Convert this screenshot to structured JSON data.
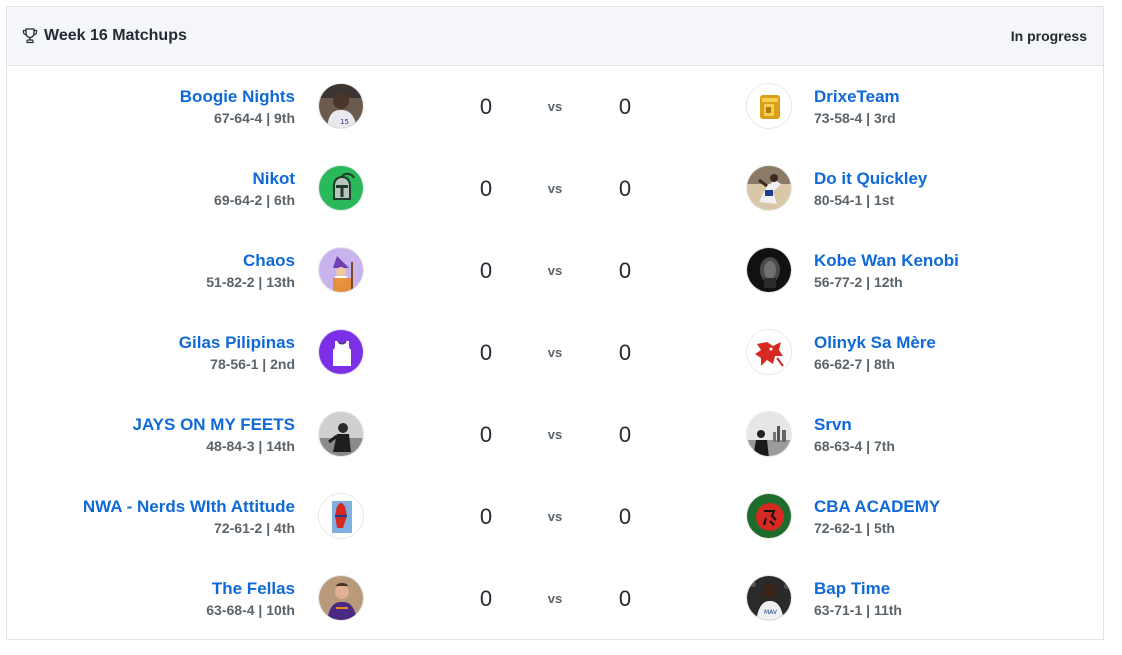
{
  "header": {
    "title": "Week 16 Matchups",
    "status": "In progress",
    "icon": "trophy-icon"
  },
  "vs_label": "vs",
  "matchups": [
    {
      "left": {
        "name": "Boogie Nights",
        "record": "67-64-4 | 9th",
        "score": "0",
        "avatar": "player-photo"
      },
      "right": {
        "name": "DrixeTeam",
        "record": "73-58-4 | 3rd",
        "score": "0",
        "avatar": "gold-logo"
      }
    },
    {
      "left": {
        "name": "Nikot",
        "record": "69-64-2 | 6th",
        "score": "0",
        "avatar": "green-knight-helmet"
      },
      "right": {
        "name": "Do it Quickley",
        "record": "80-54-1 | 1st",
        "score": "0",
        "avatar": "player-dunk-photo"
      }
    },
    {
      "left": {
        "name": "Chaos",
        "record": "51-82-2 | 13th",
        "score": "0",
        "avatar": "purple-wizard"
      },
      "right": {
        "name": "Kobe Wan Kenobi",
        "record": "56-77-2 | 12th",
        "score": "0",
        "avatar": "dark-portrait-photo"
      }
    },
    {
      "left": {
        "name": "Gilas Pilipinas",
        "record": "78-56-1 | 2nd",
        "score": "0",
        "avatar": "purple-jersey"
      },
      "right": {
        "name": "Olinyk Sa Mère",
        "record": "66-62-7 | 8th",
        "score": "0",
        "avatar": "red-dragon"
      }
    },
    {
      "left": {
        "name": "JAYS ON MY FEETS",
        "record": "48-84-3 | 14th",
        "score": "0",
        "avatar": "bw-player-photo"
      },
      "right": {
        "name": "Srvn",
        "record": "68-63-4 | 7th",
        "score": "0",
        "avatar": "bw-city-photo"
      }
    },
    {
      "left": {
        "name": "NWA - Nerds WIth Attitude",
        "record": "72-61-2 | 4th",
        "score": "0",
        "avatar": "comic-hero"
      },
      "right": {
        "name": "CBA ACADEMY",
        "record": "72-62-1 | 5th",
        "score": "0",
        "avatar": "red-green-emblem"
      }
    },
    {
      "left": {
        "name": "The Fellas",
        "record": "63-68-4 | 10th",
        "score": "0",
        "avatar": "suns-player-photo"
      },
      "right": {
        "name": "Bap Time",
        "record": "63-71-1 | 11th",
        "score": "0",
        "avatar": "player-crowd-photo"
      }
    }
  ]
}
